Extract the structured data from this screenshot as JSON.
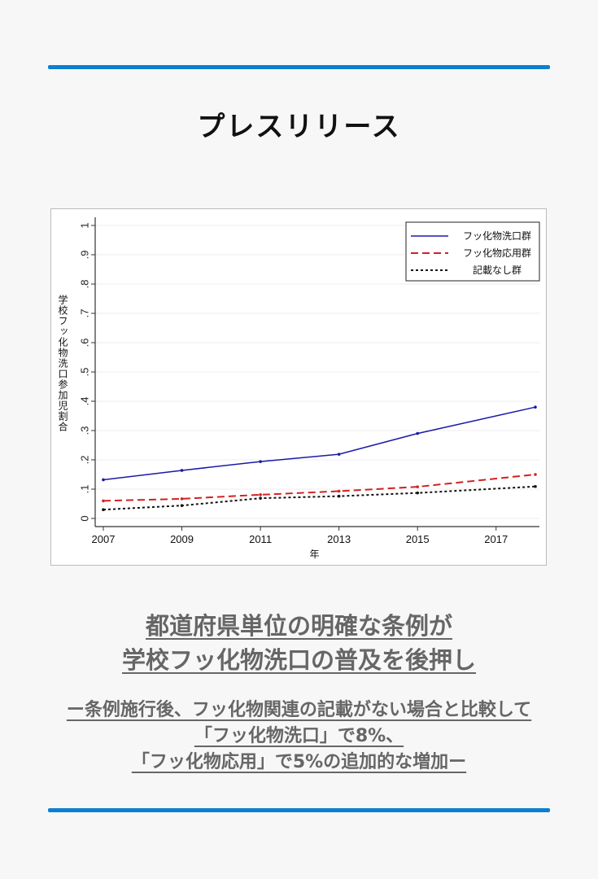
{
  "page": {
    "title": "プレスリリース",
    "headline_lines": [
      "都道府県単位の明確な条例が",
      "学校フッ化物洗口の普及を後押し"
    ],
    "subheadline_lines": [
      "ー条例施行後、フッ化物関連の記載がない場合と比較して",
      "「フッ化物洗口」で8%、",
      "「フッ化物応用」で5%の追加的な増加ー"
    ],
    "accent_color": "#0b80d1"
  },
  "chart_data": {
    "type": "line",
    "title": "",
    "xlabel": "年",
    "ylabel": "学校フッ化物洗口参加児割合",
    "x": [
      2007,
      2009,
      2011,
      2013,
      2015,
      2018
    ],
    "xticks": [
      "2007",
      "2009",
      "2011",
      "2013",
      "2015",
      "2017"
    ],
    "yticks": [
      "0",
      ".1",
      ".2",
      ".3",
      ".4",
      ".5",
      ".6",
      ".7",
      ".8",
      ".9",
      "1"
    ],
    "xlim": [
      2007,
      2018
    ],
    "ylim": [
      0,
      1
    ],
    "grid": true,
    "legend_position": "top-right",
    "series": [
      {
        "name": "フッ化物洗口群",
        "color": "#1a1aa8",
        "style": "solid",
        "values": [
          0.132,
          0.164,
          0.194,
          0.219,
          0.29,
          0.38
        ]
      },
      {
        "name": "フッ化物応用群",
        "color": "#d42020",
        "style": "dashed",
        "values": [
          0.06,
          0.067,
          0.081,
          0.093,
          0.108,
          0.15
        ]
      },
      {
        "name": "記載なし群",
        "color": "#111111",
        "style": "dotted",
        "values": [
          0.03,
          0.044,
          0.069,
          0.076,
          0.087,
          0.109
        ]
      }
    ]
  }
}
